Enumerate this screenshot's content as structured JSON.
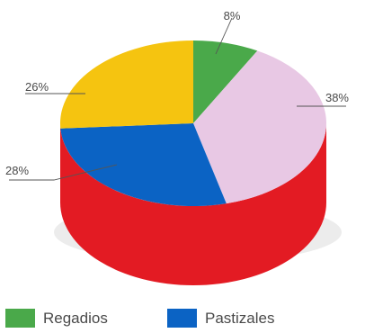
{
  "chart_data": {
    "type": "pie",
    "slices": [
      {
        "label": "8%",
        "value": 8,
        "color": "#4aa94a"
      },
      {
        "label": "38%",
        "value": 38,
        "color": "#e8c8e4"
      },
      {
        "label": "28%",
        "value": 28,
        "color": "#0b63c4"
      },
      {
        "label": "26%",
        "value": 26,
        "color": "#f5c410"
      }
    ],
    "side_color": "#e31b23",
    "legend": [
      {
        "name": "Regadios",
        "color": "#4aa94a"
      },
      {
        "name": "Pastizales",
        "color": "#0b63c4"
      }
    ]
  }
}
